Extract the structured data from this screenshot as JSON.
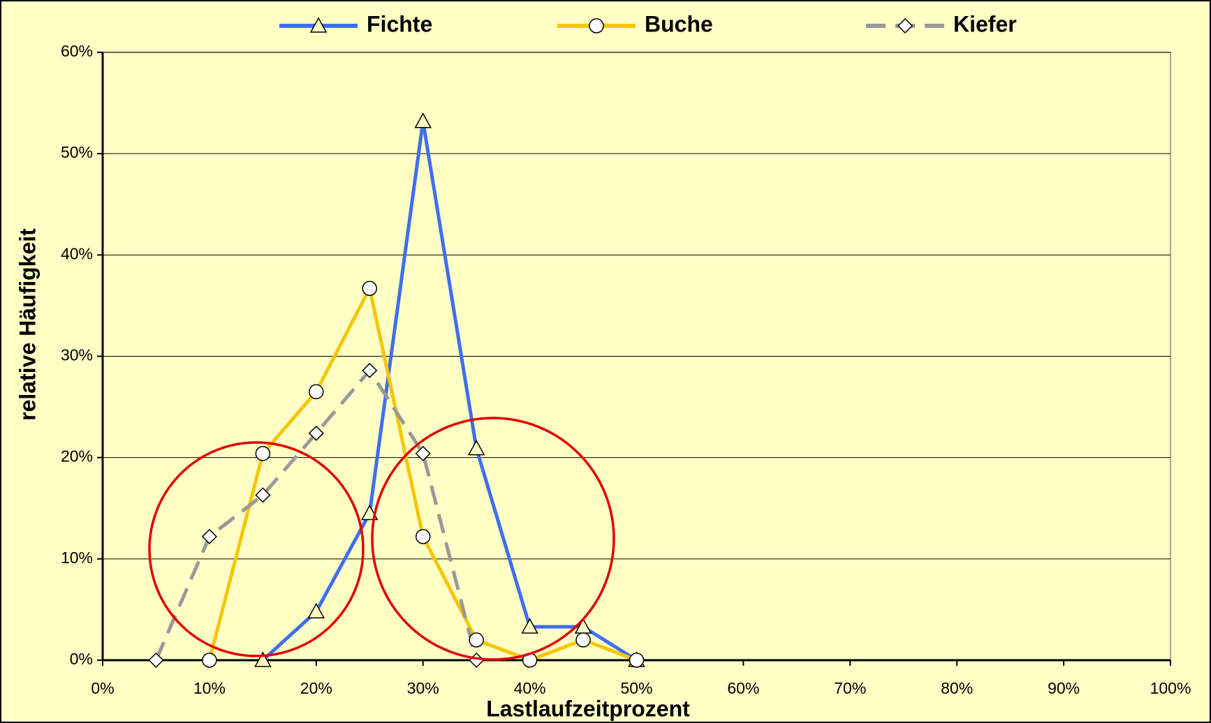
{
  "chart_data": {
    "type": "line",
    "xlabel": "Lastlaufzeitprozent",
    "ylabel": "relative Häufigkeit",
    "xlim": [
      0,
      100
    ],
    "xticks": [
      {
        "value": 0,
        "label": "0%"
      },
      {
        "value": 10,
        "label": "10%"
      },
      {
        "value": 20,
        "label": "20%"
      },
      {
        "value": 30,
        "label": "30%"
      },
      {
        "value": 40,
        "label": "40%"
      },
      {
        "value": 50,
        "label": "50%"
      },
      {
        "value": 60,
        "label": "60%"
      },
      {
        "value": 70,
        "label": "70%"
      },
      {
        "value": 80,
        "label": "80%"
      },
      {
        "value": 90,
        "label": "90%"
      },
      {
        "value": 100,
        "label": "100%"
      }
    ],
    "ylim": [
      0,
      60
    ],
    "yticks": [
      {
        "value": 0,
        "label": "0%"
      },
      {
        "value": 10,
        "label": "10%"
      },
      {
        "value": 20,
        "label": "20%"
      },
      {
        "value": 30,
        "label": "30%"
      },
      {
        "value": 40,
        "label": "40%"
      },
      {
        "value": 50,
        "label": "50%"
      },
      {
        "value": 60,
        "label": "60%"
      }
    ],
    "grid": true,
    "legend": "top",
    "series": [
      {
        "name": "Fichte",
        "color": "#3f6ef0",
        "marker": "triangle",
        "dash": false,
        "x": [
          15,
          20,
          25,
          30,
          35,
          40,
          45,
          50
        ],
        "values": [
          0,
          4.8,
          14.5,
          53.2,
          20.9,
          3.3,
          3.3,
          0
        ]
      },
      {
        "name": "Buche",
        "color": "#f7c600",
        "marker": "circle",
        "dash": false,
        "x": [
          10,
          15,
          20,
          25,
          30,
          35,
          40,
          45,
          50
        ],
        "values": [
          0,
          20.4,
          26.5,
          36.7,
          12.2,
          2.0,
          0,
          2.0,
          0
        ]
      },
      {
        "name": "Kiefer",
        "color": "#999999",
        "marker": "diamond",
        "dash": true,
        "x": [
          5,
          10,
          15,
          20,
          25,
          30,
          35
        ],
        "values": [
          0,
          12.2,
          16.3,
          22.4,
          28.6,
          20.4,
          0
        ]
      }
    ]
  }
}
